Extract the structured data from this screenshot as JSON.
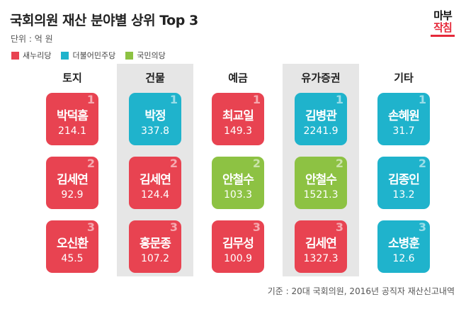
{
  "title": "국회의원 재산 분야별 상위 Top 3",
  "unit": "단위 : 억 원",
  "logo": {
    "line1": "마부",
    "line2": "작침"
  },
  "source": "기준 : 20대 국회의원, 2016년 공직자 재산신고내역",
  "colors": {
    "새누리당": "#e84351",
    "더불어민주당": "#1fb3cc",
    "국민의당": "#8dc243",
    "column_bg": "#e6e6e6"
  },
  "chart_data": {
    "type": "table",
    "title": "국회의원 재산 분야별 상위 Top 3",
    "unit": "단위 : 억 원",
    "legend": [
      {
        "label": "새누리당",
        "color": "#e84351"
      },
      {
        "label": "더불어민주당",
        "color": "#1fb3cc"
      },
      {
        "label": "국민의당",
        "color": "#8dc243"
      }
    ],
    "categories": [
      {
        "name": "토지",
        "shaded": false,
        "entries": [
          {
            "rank": "1",
            "name": "박덕흠",
            "value": "214.1",
            "party": "새누리당"
          },
          {
            "rank": "2",
            "name": "김세연",
            "value": "92.9",
            "party": "새누리당"
          },
          {
            "rank": "3",
            "name": "오신환",
            "value": "45.5",
            "party": "새누리당"
          }
        ]
      },
      {
        "name": "건물",
        "shaded": true,
        "entries": [
          {
            "rank": "1",
            "name": "박정",
            "value": "337.8",
            "party": "더불어민주당"
          },
          {
            "rank": "2",
            "name": "김세연",
            "value": "124.4",
            "party": "새누리당"
          },
          {
            "rank": "3",
            "name": "홍문종",
            "value": "107.2",
            "party": "새누리당"
          }
        ]
      },
      {
        "name": "예금",
        "shaded": false,
        "entries": [
          {
            "rank": "1",
            "name": "최교일",
            "value": "149.3",
            "party": "새누리당"
          },
          {
            "rank": "2",
            "name": "안철수",
            "value": "103.3",
            "party": "국민의당"
          },
          {
            "rank": "3",
            "name": "김무성",
            "value": "100.9",
            "party": "새누리당"
          }
        ]
      },
      {
        "name": "유가증권",
        "shaded": true,
        "entries": [
          {
            "rank": "1",
            "name": "김병관",
            "value": "2241.9",
            "party": "더불어민주당"
          },
          {
            "rank": "2",
            "name": "안철수",
            "value": "1521.3",
            "party": "국민의당"
          },
          {
            "rank": "3",
            "name": "김세연",
            "value": "1327.3",
            "party": "새누리당"
          }
        ]
      },
      {
        "name": "기타",
        "shaded": false,
        "entries": [
          {
            "rank": "1",
            "name": "손혜원",
            "value": "31.7",
            "party": "더불어민주당"
          },
          {
            "rank": "2",
            "name": "김종인",
            "value": "13.2",
            "party": "더불어민주당"
          },
          {
            "rank": "3",
            "name": "소병훈",
            "value": "12.6",
            "party": "더불어민주당"
          }
        ]
      }
    ]
  }
}
